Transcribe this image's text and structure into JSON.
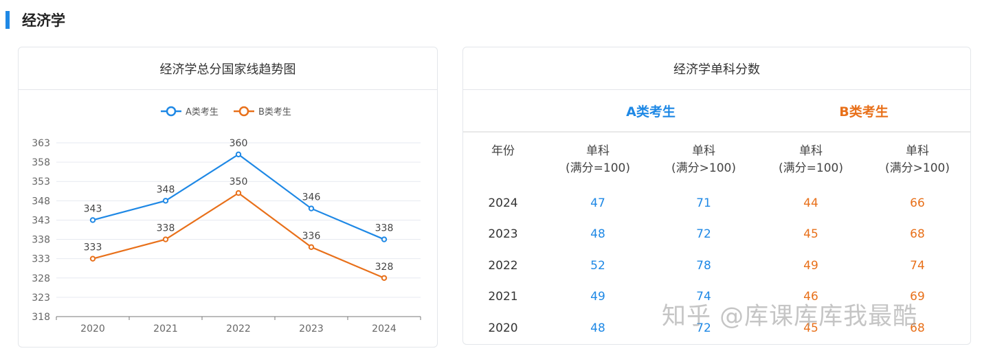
{
  "section": {
    "title": "经济学"
  },
  "left_card": {
    "title": "经济学总分国家线趋势图"
  },
  "chart_data": {
    "type": "line",
    "title": "经济学总分国家线趋势图",
    "categories": [
      "2020",
      "2021",
      "2022",
      "2023",
      "2024"
    ],
    "series": [
      {
        "name": "A类考生",
        "color": "#1e88e5",
        "values": [
          343,
          348,
          360,
          346,
          338
        ]
      },
      {
        "name": "B类考生",
        "color": "#e8701a",
        "values": [
          333,
          338,
          350,
          336,
          328
        ]
      }
    ],
    "y_ticks": [
      318,
      323,
      328,
      333,
      338,
      343,
      348,
      353,
      358,
      363
    ],
    "ylim": [
      318,
      363
    ],
    "grid": true,
    "legend": "top-center",
    "data_labels": true
  },
  "right_card": {
    "title": "经济学单科分数",
    "group_a": "A类考生",
    "group_b": "B类考生",
    "col_year": "年份",
    "col_single": "单科",
    "col_full_100": "(满分=100)",
    "col_full_gt100": "(满分>100)",
    "rows": [
      {
        "year": "2024",
        "a100": "47",
        "agt": "71",
        "b100": "44",
        "bgt": "66"
      },
      {
        "year": "2023",
        "a100": "48",
        "agt": "72",
        "b100": "45",
        "bgt": "68"
      },
      {
        "year": "2022",
        "a100": "52",
        "agt": "78",
        "b100": "49",
        "bgt": "74"
      },
      {
        "year": "2021",
        "a100": "49",
        "agt": "74",
        "b100": "46",
        "bgt": "69"
      },
      {
        "year": "2020",
        "a100": "48",
        "agt": "72",
        "b100": "45",
        "bgt": "68"
      }
    ]
  },
  "watermark": "知乎 @库课库库我最酷"
}
